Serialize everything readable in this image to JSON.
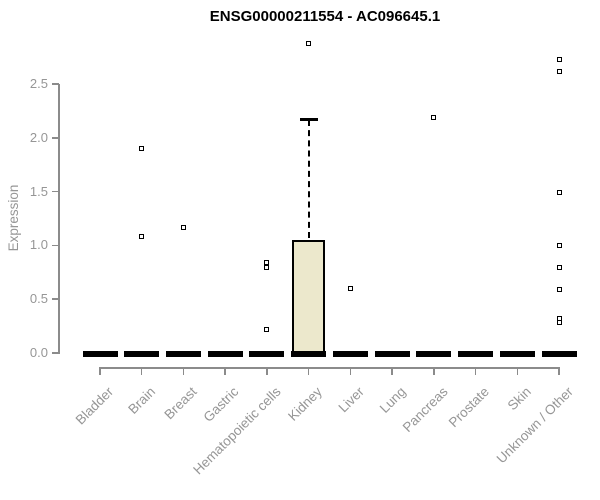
{
  "title": "ENSG00000211554 - AC096645.1",
  "chart_data": {
    "type": "boxplot",
    "title": "ENSG00000211554 - AC096645.1",
    "xlabel": "",
    "ylabel": "Expression",
    "ylim": [
      0,
      2.9
    ],
    "yticks": [
      0,
      0.5,
      1,
      1.5,
      2,
      2.5
    ],
    "ytick_labels": [
      "0.0",
      "0.5",
      "1.0",
      "1.5",
      "2.0",
      "2.5"
    ],
    "grid": "off",
    "legend": "none",
    "categories": [
      "Bladder",
      "Brain",
      "Breast",
      "Gastric",
      "Hematopoietic cells",
      "Kidney",
      "Liver",
      "Lung",
      "Pancreas",
      "Prostate",
      "Skin",
      "Unknown / Other"
    ],
    "boxes": [
      {
        "category": "Bladder",
        "whisker_low": 0,
        "q1": 0,
        "median": 0,
        "q3": 0,
        "whisker_high": 0,
        "outliers": []
      },
      {
        "category": "Brain",
        "whisker_low": 0,
        "q1": 0,
        "median": 0,
        "q3": 0,
        "whisker_high": 0,
        "outliers": [
          1.9,
          1.08
        ]
      },
      {
        "category": "Breast",
        "whisker_low": 0,
        "q1": 0,
        "median": 0,
        "q3": 0,
        "whisker_high": 0,
        "outliers": [
          1.17
        ]
      },
      {
        "category": "Gastric",
        "whisker_low": 0,
        "q1": 0,
        "median": 0,
        "q3": 0,
        "whisker_high": 0,
        "outliers": []
      },
      {
        "category": "Hematopoietic cells",
        "whisker_low": 0,
        "q1": 0,
        "median": 0,
        "q3": 0,
        "whisker_high": 0,
        "outliers": [
          0.84,
          0.79,
          0.22
        ]
      },
      {
        "category": "Kidney",
        "whisker_low": 0,
        "q1": 0,
        "median": 0,
        "q3": 1.05,
        "whisker_high": 2.17,
        "outliers": [
          2.88
        ]
      },
      {
        "category": "Liver",
        "whisker_low": 0,
        "q1": 0,
        "median": 0,
        "q3": 0,
        "whisker_high": 0,
        "outliers": [
          0.6
        ]
      },
      {
        "category": "Lung",
        "whisker_low": 0,
        "q1": 0,
        "median": 0,
        "q3": 0,
        "whisker_high": 0,
        "outliers": []
      },
      {
        "category": "Pancreas",
        "whisker_low": 0,
        "q1": 0,
        "median": 0,
        "q3": 0,
        "whisker_high": 0,
        "outliers": [
          2.19
        ]
      },
      {
        "category": "Prostate",
        "whisker_low": 0,
        "q1": 0,
        "median": 0,
        "q3": 0,
        "whisker_high": 0,
        "outliers": []
      },
      {
        "category": "Skin",
        "whisker_low": 0,
        "q1": 0,
        "median": 0,
        "q3": 0,
        "whisker_high": 0,
        "outliers": []
      },
      {
        "category": "Unknown / Other",
        "whisker_low": 0,
        "q1": 0,
        "median": 0,
        "q3": 0,
        "whisker_high": 0,
        "outliers": [
          2.73,
          2.62,
          1.49,
          1.0,
          0.79,
          0.59,
          0.32,
          0.28
        ]
      }
    ],
    "colors": {
      "box_fill": "#ece8cc",
      "box_border": "#000000",
      "whisker": "#000000",
      "median": "#000000",
      "outlier_fill": "#ffffff",
      "outlier_border": "#000000",
      "axis": "#8b8b8b",
      "tick_label": "#969696",
      "title": "#000000",
      "background": "#ffffff"
    }
  }
}
